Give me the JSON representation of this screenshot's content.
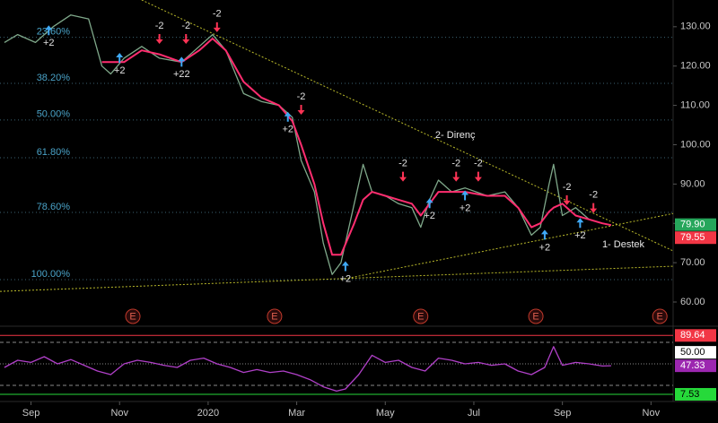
{
  "chart_data": [
    {
      "type": "line",
      "x": [
        -0.6,
        -0.3,
        0.1,
        0.5,
        0.9,
        1.3,
        1.6,
        1.8,
        2.1,
        2.5,
        2.9,
        3.4,
        3.8,
        4.1,
        4.4,
        4.8,
        5.2,
        5.6,
        5.9,
        6.1,
        6.4,
        6.6,
        6.8,
        7.0,
        7.3,
        7.5,
        7.7,
        8.0,
        8.3,
        8.6,
        8.8,
        9.0,
        9.2,
        9.5,
        9.8,
        10.3,
        10.7,
        11.0,
        11.3,
        11.5,
        11.7,
        11.8,
        12.0,
        12.3,
        12.6,
        12.9,
        13.1
      ],
      "series": [
        {
          "color": "#7fa88a",
          "values": [
            126,
            128,
            126,
            130,
            133,
            132,
            120,
            118,
            122,
            125,
            122,
            121,
            125,
            128,
            124,
            113,
            111,
            110,
            107,
            96,
            88,
            75,
            67,
            70,
            85,
            95,
            88,
            87,
            85,
            84,
            79,
            86,
            91,
            88,
            89,
            87,
            88,
            84,
            77,
            79,
            90,
            95,
            82,
            84,
            81,
            80,
            79.55
          ]
        },
        {
          "color": "#ff2d6f",
          "values": [
            null,
            null,
            null,
            null,
            null,
            null,
            121,
            121,
            121,
            124,
            123,
            121,
            124,
            127,
            124,
            116,
            112,
            110,
            106,
            100,
            90,
            80,
            72,
            72,
            80,
            86,
            88,
            87,
            86,
            85,
            82,
            85,
            88,
            88,
            88,
            87,
            87,
            84,
            79,
            80,
            83,
            84,
            85,
            82,
            81,
            80,
            79.55
          ]
        }
      ],
      "xlim": [
        -0.7,
        14.5
      ],
      "xticks": [
        {
          "value": 0,
          "label": "Sep"
        },
        {
          "value": 2,
          "label": "Nov"
        },
        {
          "value": 4,
          "label": "2020"
        },
        {
          "value": 6,
          "label": "Mar"
        },
        {
          "value": 8,
          "label": "May"
        },
        {
          "value": 10,
          "label": "Jul"
        },
        {
          "value": 12,
          "label": "Sep"
        },
        {
          "value": 14,
          "label": "Nov"
        }
      ],
      "ylim": [
        54.3,
        136.8
      ],
      "yticks": [
        {
          "value": 60,
          "label": "60.00"
        },
        {
          "value": 70,
          "label": "70.00"
        },
        {
          "value": 80,
          "label": "80.00"
        },
        {
          "value": 90,
          "label": "90.00"
        },
        {
          "value": 100,
          "label": "100.00"
        },
        {
          "value": 110,
          "label": "110.00"
        },
        {
          "value": 120,
          "label": "120.00"
        },
        {
          "value": 130,
          "label": "130.00"
        }
      ],
      "fib_levels": [
        {
          "label": "23.60%",
          "value": 127.3
        },
        {
          "label": "38.20%",
          "value": 115.6
        },
        {
          "label": "50.00%",
          "value": 106.3
        },
        {
          "label": "61.80%",
          "value": 96.7
        },
        {
          "label": "78.60%",
          "value": 82.8
        },
        {
          "label": "100.00%",
          "value": 65.7
        }
      ],
      "trend_lines": [
        {
          "label": "2- Direnç",
          "x": [
            2.5,
            14.5
          ],
          "y": [
            136.8,
            73.0
          ]
        },
        {
          "x": [
            -0.7,
            14.5
          ],
          "y": [
            62.7,
            69.1
          ]
        },
        {
          "label": "1- Destek",
          "x": [
            7.0,
            14.5
          ],
          "y": [
            65.7,
            82.5
          ]
        }
      ],
      "signals": [
        {
          "x": 0.4,
          "price": 129,
          "label": "+2",
          "dir": "up"
        },
        {
          "x": 2.0,
          "price": 122,
          "label": "+2",
          "dir": "up"
        },
        {
          "x": 3.4,
          "price": 121,
          "label": "+22",
          "dir": "up"
        },
        {
          "x": 5.8,
          "price": 107,
          "label": "+2",
          "dir": "up"
        },
        {
          "x": 7.1,
          "price": 69,
          "label": "+2",
          "dir": "up"
        },
        {
          "x": 9.0,
          "price": 85,
          "label": "+2",
          "dir": "up"
        },
        {
          "x": 9.8,
          "price": 87,
          "label": "+2",
          "dir": "up"
        },
        {
          "x": 11.6,
          "price": 77,
          "label": "+2",
          "dir": "up"
        },
        {
          "x": 12.4,
          "price": 80,
          "label": "+2",
          "dir": "up"
        },
        {
          "x": 2.9,
          "price": 127,
          "label": "-2",
          "dir": "down"
        },
        {
          "x": 3.5,
          "price": 127,
          "label": "-2",
          "dir": "down"
        },
        {
          "x": 4.2,
          "price": 130,
          "label": "-2",
          "dir": "down"
        },
        {
          "x": 6.1,
          "price": 109,
          "label": "-2",
          "dir": "down"
        },
        {
          "x": 8.4,
          "price": 92,
          "label": "-2",
          "dir": "down"
        },
        {
          "x": 9.6,
          "price": 92,
          "label": "-2",
          "dir": "down"
        },
        {
          "x": 10.1,
          "price": 92,
          "label": "-2",
          "dir": "down"
        },
        {
          "x": 12.1,
          "price": 86,
          "label": "-2",
          "dir": "down"
        },
        {
          "x": 12.7,
          "price": 84,
          "label": "-2",
          "dir": "down"
        }
      ],
      "earnings": {
        "label": "E",
        "x": [
          2.3,
          5.5,
          8.8,
          11.4,
          14.2
        ]
      },
      "price_labels": [
        {
          "value": 79.9,
          "label": "79.90",
          "color": "#26a65b"
        },
        {
          "value": 79.55,
          "color": "#f23645"
        }
      ]
    },
    {
      "type": "line",
      "x": [
        -0.6,
        -0.3,
        0,
        0.3,
        0.6,
        0.9,
        1.2,
        1.5,
        1.8,
        2.1,
        2.4,
        2.7,
        3.0,
        3.3,
        3.6,
        3.9,
        4.2,
        4.5,
        4.8,
        5.1,
        5.4,
        5.7,
        6.0,
        6.3,
        6.6,
        6.9,
        7.1,
        7.4,
        7.7,
        8.0,
        8.3,
        8.6,
        8.9,
        9.2,
        9.5,
        9.8,
        10.1,
        10.4,
        10.7,
        11.0,
        11.3,
        11.6,
        11.8,
        12.0,
        12.3,
        12.6,
        12.9,
        13.1
      ],
      "series": [
        {
          "color": "#b040c8",
          "values": [
            45,
            55,
            52,
            60,
            50,
            56,
            48,
            40,
            35,
            50,
            55,
            52,
            48,
            45,
            55,
            58,
            50,
            45,
            38,
            42,
            38,
            40,
            35,
            28,
            18,
            12,
            15,
            35,
            62,
            52,
            55,
            45,
            40,
            58,
            55,
            50,
            52,
            48,
            50,
            40,
            35,
            45,
            74,
            48,
            52,
            50,
            47,
            47.33
          ]
        }
      ],
      "ylim": [
        0,
        100
      ],
      "guides": [
        80,
        20
      ],
      "levels": [
        {
          "value": 89.64,
          "color": "#f23645",
          "line": "solid"
        },
        {
          "value": 50,
          "label": "50.00",
          "color": "#ffffff",
          "line": "dashed"
        },
        {
          "value": 47.33,
          "color": "#9c27b0"
        },
        {
          "value": 7.53,
          "color": "#26d93a",
          "line": "solid"
        }
      ]
    }
  ]
}
